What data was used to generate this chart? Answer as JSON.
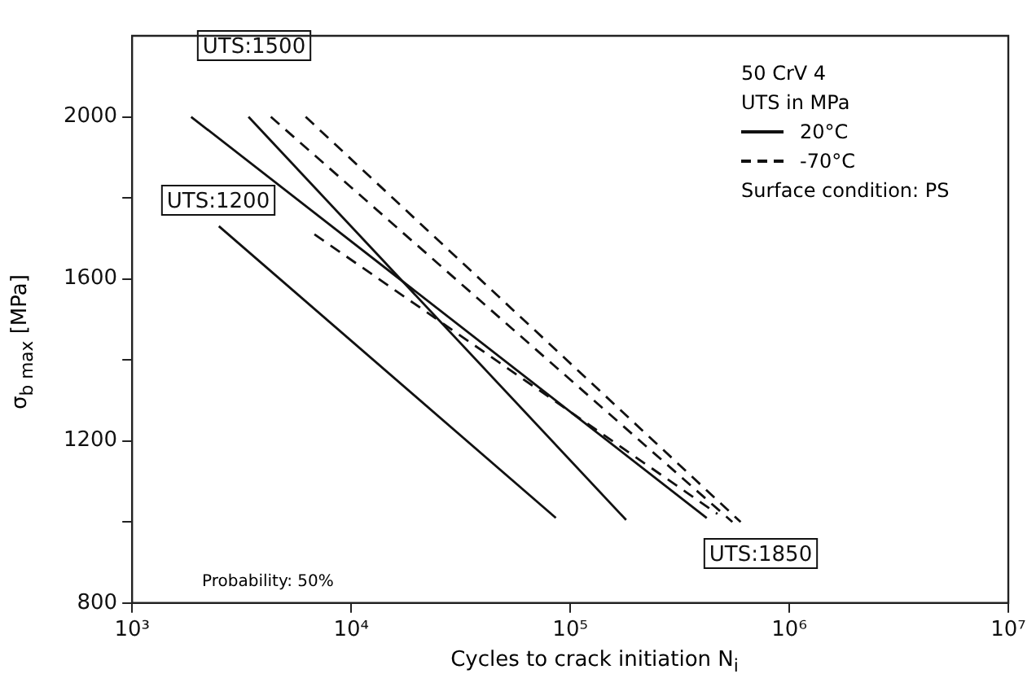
{
  "chart_data": {
    "type": "line",
    "xlabel": "Cycles to crack initiation  N$_{i}$",
    "ylabel": "σ$_{b max}$  [MPa]",
    "log": "x",
    "xlim": [
      1000,
      10000000
    ],
    "xticks": [
      {
        "value": 1000,
        "label": "10³"
      },
      {
        "value": 10000,
        "label": "10⁴"
      },
      {
        "value": 100000,
        "label": "10⁵"
      },
      {
        "value": 1000000,
        "label": "10⁶"
      },
      {
        "value": 10000000,
        "label": "10⁷"
      }
    ],
    "ylim": [
      800,
      2200
    ],
    "yticks": [
      800,
      {
        "value": 1000,
        "label": null
      },
      1200,
      {
        "value": 1400,
        "label": null
      },
      1600,
      {
        "value": 1800,
        "label": null
      },
      2000
    ],
    "grid": false,
    "legend": "top right",
    "marker": "none",
    "series": [
      {
        "name": "20°C",
        "color": "#111111",
        "line_style": "solid",
        "x": [
          2490,
          86000
        ],
        "values": [
          1730,
          1010
        ]
      },
      {
        "color": "#111111",
        "line_style": "solid",
        "x": [
          3400,
          180000
        ],
        "values": [
          2000,
          1005
        ]
      },
      {
        "color": "#111111",
        "line_style": "solid",
        "x": [
          1860,
          420000
        ],
        "values": [
          2000,
          1010
        ]
      },
      {
        "name": "-70°C",
        "color": "#111111",
        "line_style": "dashed",
        "x": [
          6800,
          470000
        ],
        "values": [
          1710,
          1020
        ]
      },
      {
        "color": "#111111",
        "line_style": "dashed",
        "x": [
          4300,
          550000
        ],
        "values": [
          2000,
          1000
        ]
      },
      {
        "color": "#111111",
        "line_style": "dashed",
        "x": [
          6200,
          600000
        ],
        "values": [
          2000,
          1000
        ]
      }
    ],
    "annotations": [
      "50 CrV 4",
      "UTS in MPa",
      "Surface condition: PS",
      "Probability: 50%",
      "UTS:1500",
      "UTS:1200",
      "UTS:1850"
    ]
  }
}
